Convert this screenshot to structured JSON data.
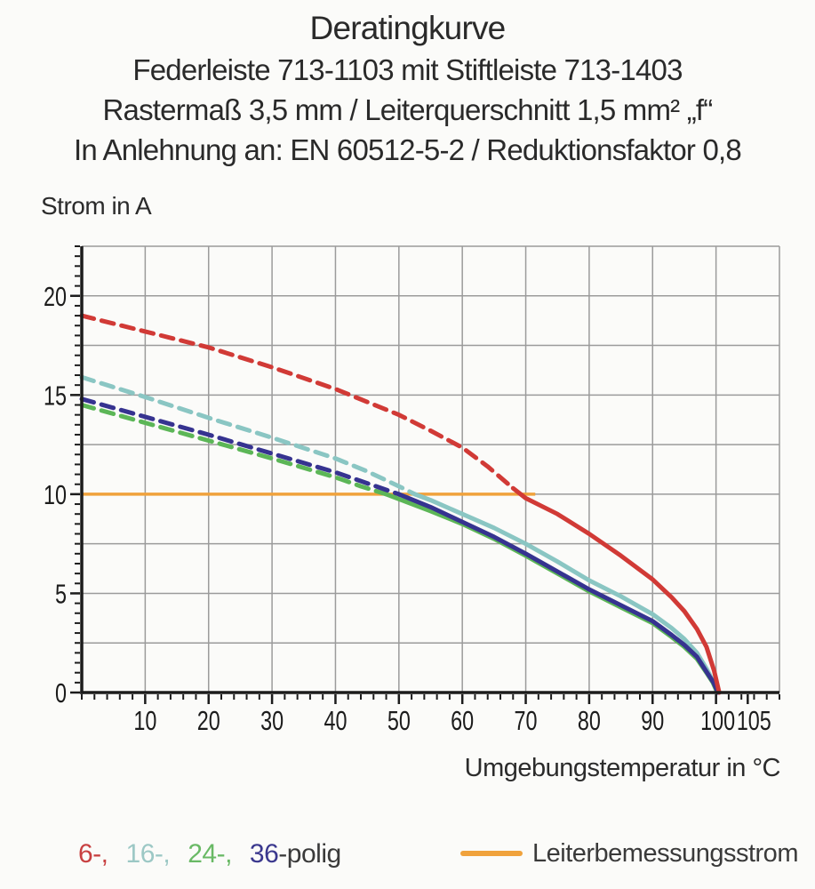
{
  "header": {
    "title": "Deratingkurve",
    "line2": "Federleiste 713-1103 mit Stiftleiste 713-1403",
    "line3": "Rastermaß 3,5 mm / Leiterquerschnitt 1,5 mm² „f“",
    "line4": "In Anlehnung an: EN 60512-5-2 / Reduktionsfaktor 0,8"
  },
  "chart_data": {
    "type": "line",
    "title": "Deratingkurve",
    "ylabel": "Strom in A",
    "xlabel": "Umgebungstemperatur in °C",
    "xlim": [
      0,
      110
    ],
    "ylim": [
      0,
      22.5
    ],
    "grid": true,
    "x_grid_step": 10,
    "y_grid_step": 2.5,
    "x_minor_step": 2,
    "y_minor_step": 0.5,
    "x_tick_labels": [
      10,
      20,
      30,
      40,
      50,
      60,
      70,
      80,
      90,
      100,
      105
    ],
    "y_tick_labels": [
      0,
      5,
      10,
      15,
      20
    ],
    "grid_color": "#9b9b9b",
    "axis_color": "#1c1c1c",
    "tick_label_color": "#1c1c1c",
    "reference_line": {
      "name": "Leiterbemessungsstrom",
      "y": 10,
      "x_start": 0,
      "x_end": 71.5,
      "color": "#f0a23c"
    },
    "series": [
      {
        "name": "24-polig",
        "color": "#5cb657",
        "dashed_above_reference": true,
        "solid_from": 48,
        "points": [
          [
            0,
            14.5
          ],
          [
            10,
            13.6
          ],
          [
            20,
            12.7
          ],
          [
            30,
            11.8
          ],
          [
            40,
            10.85
          ],
          [
            44,
            10.4
          ],
          [
            48,
            10
          ],
          [
            55,
            9.15
          ],
          [
            60,
            8.5
          ],
          [
            65,
            7.75
          ],
          [
            70,
            6.9
          ],
          [
            75,
            6.0
          ],
          [
            80,
            5.1
          ],
          [
            85,
            4.3
          ],
          [
            90,
            3.5
          ],
          [
            93,
            2.8
          ],
          [
            95,
            2.3
          ],
          [
            97,
            1.7
          ],
          [
            98.5,
            1.0
          ],
          [
            99.5,
            0.5
          ],
          [
            100.2,
            0
          ]
        ]
      },
      {
        "name": "16-polig",
        "color": "#8ac6c3",
        "dashed_above_reference": true,
        "solid_from": 52.5,
        "points": [
          [
            0,
            15.9
          ],
          [
            10,
            14.9
          ],
          [
            20,
            13.85
          ],
          [
            30,
            12.85
          ],
          [
            40,
            11.8
          ],
          [
            45,
            11.15
          ],
          [
            50,
            10.4
          ],
          [
            52.5,
            10
          ],
          [
            55,
            9.7
          ],
          [
            60,
            9.0
          ],
          [
            65,
            8.3
          ],
          [
            70,
            7.5
          ],
          [
            75,
            6.6
          ],
          [
            80,
            5.65
          ],
          [
            85,
            4.85
          ],
          [
            90,
            3.95
          ],
          [
            93,
            3.25
          ],
          [
            95,
            2.7
          ],
          [
            97,
            2.0
          ],
          [
            98.5,
            1.2
          ],
          [
            99.8,
            0.4
          ],
          [
            100.4,
            0
          ]
        ]
      },
      {
        "name": "36-polig",
        "color": "#363390",
        "dashed_above_reference": true,
        "solid_from": 50,
        "points": [
          [
            0,
            14.8
          ],
          [
            10,
            13.9
          ],
          [
            20,
            13.0
          ],
          [
            30,
            12.05
          ],
          [
            40,
            11.1
          ],
          [
            45,
            10.55
          ],
          [
            50,
            10
          ],
          [
            55,
            9.35
          ],
          [
            60,
            8.6
          ],
          [
            65,
            7.85
          ],
          [
            70,
            7.0
          ],
          [
            75,
            6.1
          ],
          [
            80,
            5.2
          ],
          [
            85,
            4.4
          ],
          [
            90,
            3.6
          ],
          [
            93,
            2.9
          ],
          [
            95,
            2.4
          ],
          [
            97,
            1.8
          ],
          [
            98.5,
            1.05
          ],
          [
            99.6,
            0.5
          ],
          [
            100.3,
            0
          ]
        ]
      },
      {
        "name": "6-polig",
        "color": "#d13a36",
        "dashed_above_reference": true,
        "solid_from": 68,
        "points": [
          [
            0,
            19.0
          ],
          [
            10,
            18.2
          ],
          [
            20,
            17.4
          ],
          [
            30,
            16.4
          ],
          [
            40,
            15.3
          ],
          [
            50,
            14.0
          ],
          [
            55,
            13.2
          ],
          [
            60,
            12.35
          ],
          [
            64,
            11.4
          ],
          [
            68,
            10.3
          ],
          [
            70,
            9.8
          ],
          [
            75,
            9.0
          ],
          [
            80,
            8.0
          ],
          [
            85,
            6.9
          ],
          [
            90,
            5.7
          ],
          [
            93,
            4.8
          ],
          [
            95,
            4.1
          ],
          [
            97,
            3.2
          ],
          [
            98.5,
            2.3
          ],
          [
            99.7,
            1.1
          ],
          [
            100.5,
            0
          ]
        ]
      }
    ]
  },
  "legend": {
    "pole_items": [
      {
        "text": "6-,",
        "color": "#c84041"
      },
      {
        "text": "16-,",
        "color": "#9cc8c5"
      },
      {
        "text": "24-,",
        "color": "#69b965"
      },
      {
        "text": "36",
        "color": "#3b388e"
      }
    ],
    "suffix": {
      "text": "-polig",
      "color": "#3a3a3a"
    },
    "reference": {
      "label": "Leiterbemessungsstrom",
      "swatch_color": "#f0a23c",
      "label_color": "#3a3a3a"
    }
  }
}
